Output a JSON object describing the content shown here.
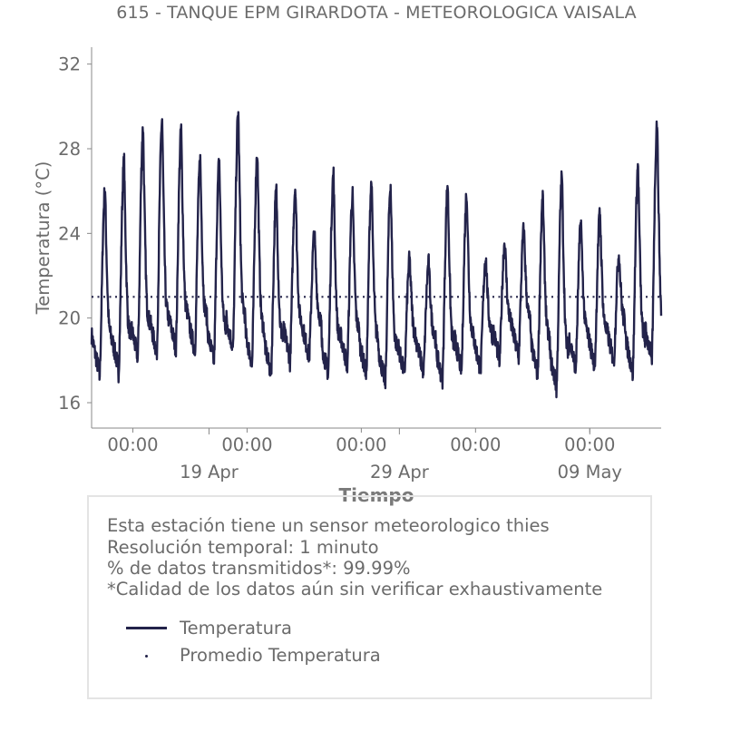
{
  "chart_data": {
    "type": "line",
    "title": "615 - TANQUE EPM GIRARDOTA - METEOROLOGICA VAISALA",
    "xlabel": "Tiempo",
    "ylabel": "Temperatura (°C)",
    "ylim": [
      14.8,
      32.8
    ],
    "yticks": [
      "16",
      "20",
      "24",
      "28",
      "32"
    ],
    "xlim": [
      "2023-04-12T20:00",
      "2023-05-12T18:00"
    ],
    "xticks": [
      {
        "t": "2023-04-15T00:00",
        "time": "00:00",
        "date": ""
      },
      {
        "t": "2023-04-21T00:00",
        "time": "00:00",
        "date": ""
      },
      {
        "t": "2023-04-27T00:00",
        "time": "00:00",
        "date": ""
      },
      {
        "t": "2023-05-03T00:00",
        "time": "00:00",
        "date": ""
      },
      {
        "t": "2023-05-09T00:00",
        "time": "00:00",
        "date": ""
      },
      {
        "t": "2023-04-19T00:00",
        "time": "",
        "date": "19 Apr"
      },
      {
        "t": "2023-04-29T00:00",
        "time": "",
        "date": "29 Apr"
      },
      {
        "t": "2023-05-09T00:00",
        "time": "",
        "date": "09 May"
      }
    ],
    "series": [
      {
        "name": "Temperatura",
        "color": "#23234a",
        "daily_min": [
          17.2,
          17.4,
          18.0,
          18.2,
          18.4,
          18.3,
          17.8,
          18.4,
          17.7,
          17.2,
          17.9,
          18.0,
          17.2,
          17.6,
          17.2,
          16.8,
          17.2,
          17.3,
          16.9,
          17.4,
          17.4,
          17.9,
          18.0,
          17.2,
          16.6,
          17.5,
          17.6,
          17.8,
          17.3,
          17.9
        ],
        "daily_max": [
          26.1,
          27.4,
          29.0,
          29.4,
          28.9,
          27.5,
          27.4,
          29.7,
          27.8,
          26.0,
          26.2,
          24.0,
          26.8,
          25.8,
          26.4,
          26.3,
          22.8,
          22.6,
          26.3,
          25.9,
          22.9,
          23.6,
          24.2,
          25.6,
          26.7,
          24.5,
          25.0,
          23.0,
          27.2,
          29.3
        ],
        "start": "2023-04-12T20:00",
        "end": "2023-05-12T18:00"
      },
      {
        "name": "Promedio Temperatura",
        "color": "#23234a",
        "value": 21.0
      }
    ],
    "legend": "bottom-left",
    "grid": false
  },
  "notes": {
    "line1": "Esta estación tiene un sensor meteorologico thies",
    "line2": "Resolución temporal: 1 minuto",
    "line3": "% de datos transmitidos*: 99.99%",
    "line4": "*Calidad de los datos aún sin verificar exhaustivamente"
  }
}
